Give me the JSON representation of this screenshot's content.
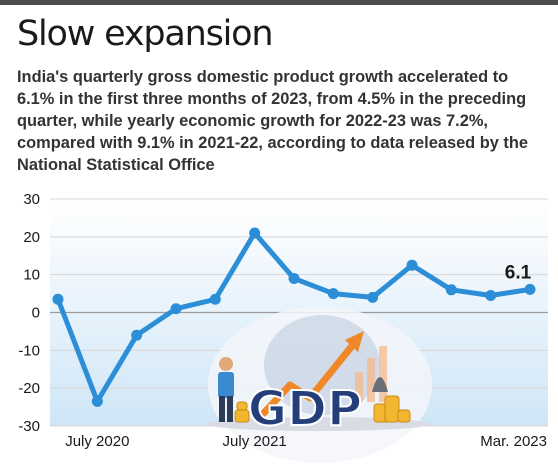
{
  "header": {
    "title": "Slow expansion",
    "subtitle": "India's quarterly gross domestic product growth accelerated to 6.1% in the first three months of 2023, from 4.5% in the preceding quarter, while yearly economic growth for 2022-23 was 7.2%, compared with 9.1% in 2021-22, according to data released by the National Statistical Office"
  },
  "illustration": {
    "text": "GDP",
    "icons": [
      "person-icon",
      "coin-stack-icon",
      "money-bag-icon",
      "trend-arrow-icon",
      "bar-chart-icon",
      "globe-icon"
    ]
  },
  "colors": {
    "line": "#2b8ed6",
    "grid": "#d6d6d6",
    "zero_line": "#9a9a9a",
    "area_top": "#ffffff",
    "area_bottom": "#cfe6f7",
    "text": "#1a1a1a",
    "gdp_blue": "#243e7a",
    "arrow_orange": "#f0882a",
    "coin": "#f2b630"
  },
  "chart_data": {
    "type": "line",
    "title": "",
    "xlabel": "",
    "ylabel": "",
    "ylim": [
      -30,
      30
    ],
    "yticks": [
      -30,
      -20,
      -10,
      0,
      10,
      20,
      30
    ],
    "ytick_labels": [
      "-30",
      "-20",
      "-10",
      "0",
      "10",
      "20",
      "30"
    ],
    "grid": true,
    "x": [
      "Jan-Mar 2020",
      "Apr-Jun 2020",
      "Jul-Sep 2020",
      "Oct-Dec 2020",
      "Jan-Mar 2021",
      "Apr-Jun 2021",
      "Jul-Sep 2021",
      "Oct-Dec 2021",
      "Jan-Mar 2022",
      "Apr-Jun 2022",
      "Jul-Sep 2022",
      "Oct-Dec 2022",
      "Jan-Mar 2023"
    ],
    "xtick_labels": [
      "",
      "July 2020",
      "",
      "",
      "",
      "July 2021",
      "",
      "",
      "",
      "",
      "",
      "",
      "Mar. 2023"
    ],
    "series": [
      {
        "values": [
          3.5,
          -23.5,
          -6,
          1,
          3.5,
          21,
          9,
          5,
          4,
          12.5,
          6,
          4.5,
          6.1
        ]
      }
    ],
    "annotations": [
      {
        "point": "Jan-Mar 2023",
        "label": "6.1"
      }
    ]
  }
}
